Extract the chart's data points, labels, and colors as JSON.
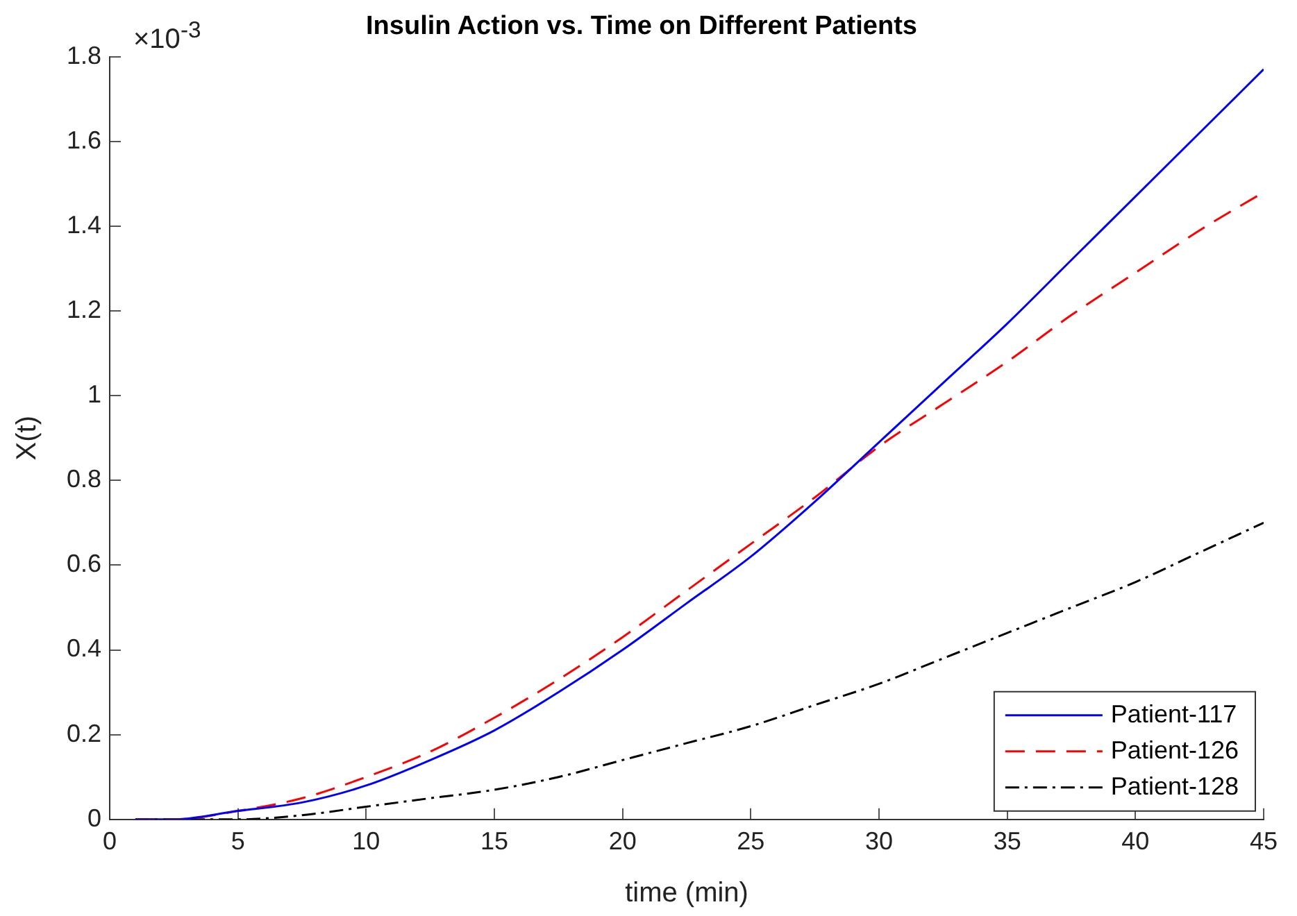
{
  "chart_data": {
    "type": "line",
    "title": "Insulin Action vs. Time on Different Patients",
    "xlabel": "time (min)",
    "ylabel": "X(t)",
    "annotations": [
      "×10$^{-3}$"
    ],
    "xlim": [
      0,
      45
    ],
    "xticks": [
      0,
      5,
      10,
      15,
      20,
      25,
      30,
      35,
      40,
      45
    ],
    "ylim": [
      0,
      1.8
    ],
    "yticks": [
      0,
      0.2,
      0.4,
      0.6,
      0.8,
      1,
      1.2,
      1.4,
      1.6,
      1.8
    ],
    "grid": false,
    "legend": "bottom right",
    "marker": "none",
    "series": [
      {
        "name": "Patient-117",
        "color": "#0000ff",
        "line_style": "solid",
        "x": [
          1,
          2.5,
          5,
          7.5,
          10,
          12.5,
          15,
          17.5,
          20,
          22.5,
          25,
          27.5,
          30,
          32.5,
          35,
          37.5,
          40,
          42.5,
          45
        ],
        "values": [
          0,
          0,
          0.02,
          0.04,
          0.08,
          0.14,
          0.21,
          0.3,
          0.4,
          0.51,
          0.62,
          0.75,
          0.89,
          1.03,
          1.17,
          1.32,
          1.47,
          1.62,
          1.77
        ]
      },
      {
        "name": "Patient-126",
        "color": "#ff0000",
        "line_style": "dashed",
        "x": [
          1,
          2.5,
          5,
          7.5,
          10,
          12.5,
          15,
          17.5,
          20,
          22.5,
          25,
          27.5,
          30,
          32.5,
          35,
          37.5,
          40,
          42.5,
          45
        ],
        "values": [
          0,
          0,
          0.02,
          0.05,
          0.1,
          0.16,
          0.24,
          0.33,
          0.43,
          0.54,
          0.65,
          0.76,
          0.88,
          0.98,
          1.08,
          1.19,
          1.29,
          1.39,
          1.48
        ]
      },
      {
        "name": "Patient-128",
        "color": "#000000",
        "line_style": "dashdot",
        "x": [
          1,
          2.5,
          5,
          7.5,
          10,
          12.5,
          15,
          17.5,
          20,
          22.5,
          25,
          27.5,
          30,
          32.5,
          35,
          37.5,
          40,
          42.5,
          45
        ],
        "values": [
          0,
          0,
          0,
          0.01,
          0.03,
          0.05,
          0.07,
          0.1,
          0.14,
          0.18,
          0.22,
          0.27,
          0.32,
          0.38,
          0.44,
          0.5,
          0.56,
          0.63,
          0.7
        ]
      }
    ]
  }
}
